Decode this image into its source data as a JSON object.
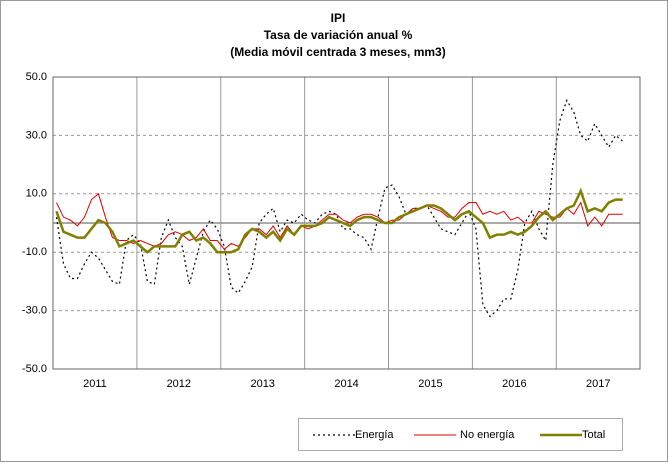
{
  "chart_data": {
    "type": "line",
    "title": "IPI",
    "subtitle": [
      "Tasa de variación anual %",
      "(Media móvil centrada 3 meses, mm3)"
    ],
    "categories": [
      null,
      null,
      null,
      null,
      null,
      null,
      "2011",
      null,
      null,
      null,
      null,
      null,
      null,
      null,
      null,
      null,
      null,
      null,
      "2012",
      null,
      null,
      null,
      null,
      null,
      null,
      null,
      null,
      null,
      null,
      null,
      "2013",
      null,
      null,
      null,
      null,
      null,
      null,
      null,
      null,
      null,
      null,
      null,
      "2014",
      null,
      null,
      null,
      null,
      null,
      null,
      null,
      null,
      null,
      null,
      null,
      "2015",
      null,
      null,
      null,
      null,
      null,
      null,
      null,
      null,
      null,
      null,
      null,
      "2016",
      null,
      null,
      null,
      null,
      null,
      null,
      null,
      null,
      null,
      null,
      null,
      "2017",
      null,
      null,
      null
    ],
    "series": [
      {
        "name": "Energía",
        "color": "#000000",
        "style": "dotted",
        "values": [
          2,
          -14,
          -19,
          -19,
          -14,
          -10,
          -12,
          -16,
          -20,
          -21,
          -6,
          -4,
          -7,
          -20,
          -21,
          -5,
          1,
          -5,
          -8,
          -21,
          -12,
          -3,
          1,
          -2,
          -8,
          -22,
          -24,
          -20,
          -15,
          0,
          3,
          5,
          -3,
          1,
          0,
          3,
          1,
          0,
          3,
          4,
          3,
          -2,
          -2,
          -4,
          -5,
          -9,
          2,
          12,
          13,
          9,
          3,
          5,
          5,
          6,
          2,
          -2,
          -3,
          -4,
          0,
          4,
          -2,
          -28,
          -32,
          -30,
          -26,
          -26,
          -16,
          0,
          4,
          -2,
          -6,
          20,
          35,
          42,
          38,
          30,
          28,
          34,
          30,
          26,
          30,
          28
        ]
      },
      {
        "name": "No energía",
        "color": "#e00000",
        "style": "solid",
        "values": [
          7,
          2,
          1,
          -1,
          2,
          8,
          10,
          2,
          -5,
          -6,
          -6,
          -7,
          -6,
          -7,
          -8,
          -7,
          -4,
          -3,
          -4,
          -6,
          -5,
          -2,
          -6,
          -6,
          -9,
          -7,
          -8,
          -5,
          -2,
          -2,
          -4,
          -1,
          -5,
          -1,
          -4,
          -1,
          -2,
          -1,
          1,
          3,
          3,
          1,
          0,
          2,
          3,
          3,
          2,
          0,
          1,
          1,
          3,
          5,
          5,
          6,
          5,
          4,
          2,
          2,
          5,
          7,
          7,
          3,
          4,
          3,
          4,
          1,
          2,
          0,
          0,
          4,
          3,
          2,
          2,
          5,
          3,
          7,
          -1,
          2,
          -1,
          3,
          3,
          3
        ]
      },
      {
        "name": "Total",
        "color": "#808000",
        "style": "thick",
        "values": [
          4,
          -3,
          -4,
          -5,
          -5,
          -2,
          1,
          0,
          -3,
          -8,
          -7,
          -6,
          -8,
          -10,
          -8,
          -8,
          -8,
          -8,
          -4,
          -3,
          -6,
          -5,
          -7,
          -10,
          -10,
          -10,
          -9,
          -4,
          -2,
          -3,
          -5,
          -3,
          -6,
          -2,
          -4,
          -1,
          -1,
          -1,
          0,
          2,
          1,
          0,
          -1,
          1,
          2,
          2,
          1,
          0,
          0,
          2,
          3,
          4,
          5,
          6,
          6,
          5,
          3,
          1,
          3,
          4,
          2,
          0,
          -5,
          -4,
          -4,
          -3,
          -4,
          -3,
          -1,
          2,
          4,
          1,
          3,
          5,
          6,
          11,
          4,
          5,
          4,
          7,
          8,
          8
        ]
      }
    ],
    "ylim": [
      -50,
      50
    ],
    "yticks": [
      {
        "value": -50,
        "label": "-50.0"
      },
      {
        "value": -30,
        "label": "-30.0"
      },
      {
        "value": -10,
        "label": "-10.0"
      },
      {
        "value": 10,
        "label": "10.0"
      },
      {
        "value": 30,
        "label": "30.0"
      },
      {
        "value": 50,
        "label": "50.0"
      }
    ],
    "grid": true,
    "legend": "bottom"
  }
}
